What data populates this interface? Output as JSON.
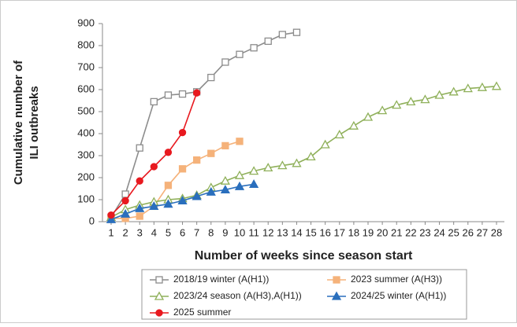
{
  "chart_data": {
    "type": "line",
    "ylabel": [
      "Cumulative number of",
      "ILI outbreaks"
    ],
    "xlabel": "Number of weeks since season start",
    "x": [
      1,
      2,
      3,
      4,
      5,
      6,
      7,
      8,
      9,
      10,
      11,
      12,
      13,
      14,
      15,
      16,
      17,
      18,
      19,
      20,
      21,
      22,
      23,
      24,
      25,
      26,
      27,
      28
    ],
    "xlim": [
      1,
      28
    ],
    "xticks": [
      1,
      2,
      3,
      4,
      5,
      6,
      7,
      8,
      9,
      10,
      11,
      12,
      13,
      14,
      15,
      16,
      17,
      18,
      19,
      20,
      21,
      22,
      23,
      24,
      25,
      26,
      27,
      28
    ],
    "ylim": [
      0,
      900
    ],
    "yticks": [
      0,
      100,
      200,
      300,
      400,
      500,
      600,
      700,
      800,
      900
    ],
    "grid": false,
    "legend": "bottom",
    "series": [
      {
        "name": "2018/19 winter (A(H1))",
        "color": "#8c8c8c",
        "marker": "square",
        "filled": false,
        "values": [
          20,
          125,
          335,
          545,
          575,
          580,
          590,
          655,
          725,
          760,
          790,
          820,
          850,
          860,
          null,
          null,
          null,
          null,
          null,
          null,
          null,
          null,
          null,
          null,
          null,
          null,
          null,
          null
        ]
      },
      {
        "name": "2023 summer (A(H3))",
        "color": "#f5b27a",
        "marker": "square",
        "filled": true,
        "values": [
          15,
          15,
          25,
          70,
          165,
          240,
          280,
          310,
          345,
          365,
          null,
          null,
          null,
          null,
          null,
          null,
          null,
          null,
          null,
          null,
          null,
          null,
          null,
          null,
          null,
          null,
          null,
          null
        ]
      },
      {
        "name": "2023/24 season (A(H3),A(H1))",
        "color": "#8fb05a",
        "marker": "triangle",
        "filled": false,
        "values": [
          20,
          55,
          75,
          90,
          100,
          105,
          120,
          155,
          185,
          210,
          230,
          245,
          255,
          265,
          295,
          350,
          395,
          435,
          475,
          505,
          530,
          545,
          555,
          575,
          590,
          605,
          610,
          615
        ]
      },
      {
        "name": "2024/25 winter (A(H1))",
        "color": "#2a6fbd",
        "marker": "triangle",
        "filled": true,
        "values": [
          10,
          35,
          60,
          70,
          80,
          95,
          115,
          135,
          145,
          160,
          170,
          null,
          null,
          null,
          null,
          null,
          null,
          null,
          null,
          null,
          null,
          null,
          null,
          null,
          null,
          null,
          null,
          null
        ]
      },
      {
        "name": "2025 summer",
        "color": "#e8191f",
        "marker": "circle",
        "filled": true,
        "values": [
          30,
          95,
          185,
          250,
          315,
          405,
          585,
          null,
          null,
          null,
          null,
          null,
          null,
          null,
          null,
          null,
          null,
          null,
          null,
          null,
          null,
          null,
          null,
          null,
          null,
          null,
          null,
          null
        ]
      }
    ]
  }
}
